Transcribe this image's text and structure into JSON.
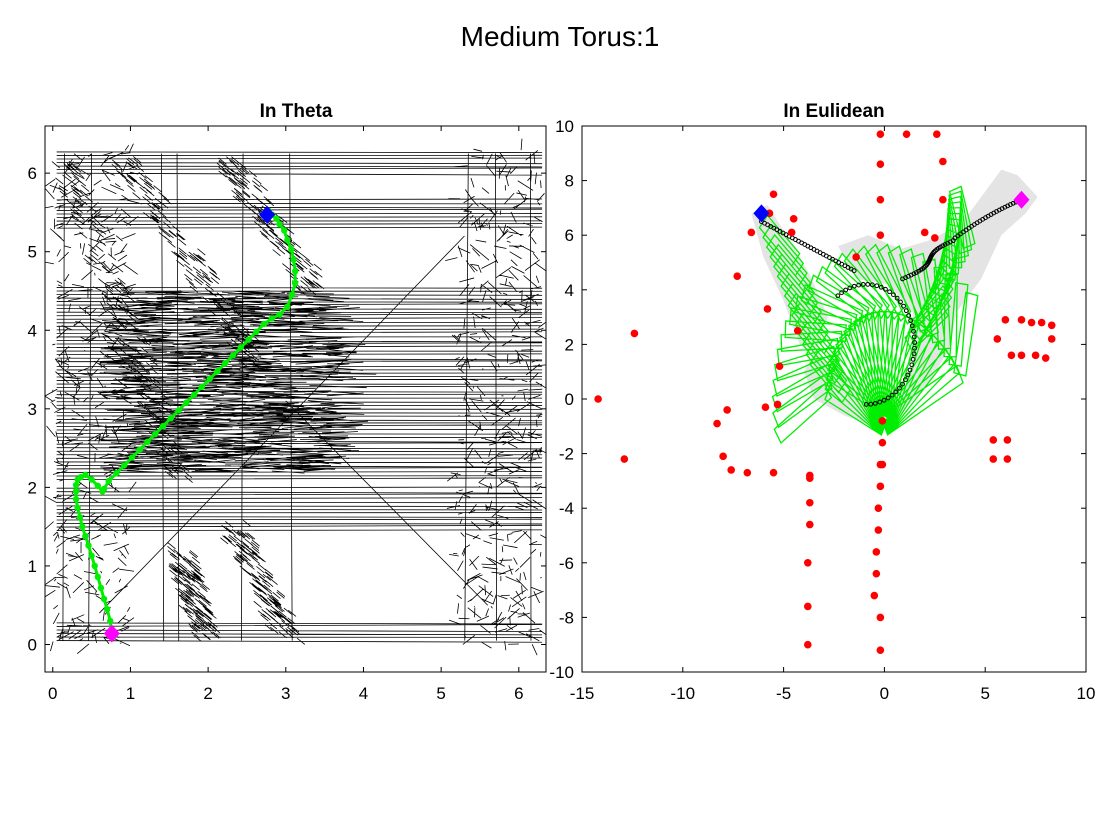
{
  "figure": {
    "title": "Medium Torus:1"
  },
  "chart_data": [
    {
      "type": "scatter",
      "title": "In Theta",
      "xlabel": "",
      "ylabel": "",
      "xlim": [
        -0.1,
        6.35
      ],
      "ylim": [
        -0.35,
        6.6
      ],
      "xticks": [
        0,
        1,
        2,
        3,
        4,
        5,
        6
      ],
      "yticks": [
        0,
        1,
        2,
        3,
        4,
        5,
        6
      ],
      "grid": false,
      "colors": {
        "path": "#00ee00",
        "start": "#ff00ff",
        "goal": "#0000ff",
        "tree": "#000000"
      },
      "path": {
        "x": [
          0.76,
          0.74,
          0.7,
          0.66,
          0.62,
          0.58,
          0.54,
          0.5,
          0.46,
          0.42,
          0.38,
          0.35,
          0.32,
          0.3,
          0.3,
          0.3,
          0.32,
          0.36,
          0.42,
          0.5,
          0.58,
          0.64,
          0.66,
          0.72,
          0.82,
          0.92,
          1.02,
          1.12,
          1.22,
          1.32,
          1.42,
          1.52,
          1.62,
          1.72,
          1.82,
          1.92,
          2.02,
          2.12,
          2.22,
          2.32,
          2.42,
          2.52,
          2.62,
          2.72,
          2.82,
          2.92,
          3.02,
          3.08,
          3.12,
          3.12,
          3.1,
          3.07,
          3.02,
          2.98,
          2.92,
          2.88,
          2.82,
          2.78,
          2.76
        ],
        "y": [
          0.14,
          0.3,
          0.45,
          0.58,
          0.72,
          0.86,
          1.0,
          1.13,
          1.26,
          1.38,
          1.5,
          1.62,
          1.74,
          1.85,
          1.95,
          2.03,
          2.1,
          2.13,
          2.16,
          2.1,
          2.02,
          1.95,
          1.98,
          2.08,
          2.18,
          2.28,
          2.38,
          2.48,
          2.58,
          2.68,
          2.78,
          2.88,
          2.98,
          3.08,
          3.18,
          3.28,
          3.38,
          3.48,
          3.58,
          3.68,
          3.78,
          3.88,
          3.98,
          4.08,
          4.15,
          4.2,
          4.3,
          4.45,
          4.6,
          4.75,
          4.9,
          5.03,
          5.15,
          5.27,
          5.35,
          5.42,
          5.47,
          5.52,
          5.47
        ]
      },
      "start": {
        "x": 0.76,
        "y": 0.14
      },
      "goal": {
        "x": 2.76,
        "y": 5.47
      }
    },
    {
      "type": "scatter",
      "title": "In Eulidean",
      "xlabel": "",
      "ylabel": "",
      "xlim": [
        -15,
        10
      ],
      "ylim": [
        -10,
        10
      ],
      "xticks": [
        -15,
        -10,
        -5,
        0,
        5,
        10
      ],
      "yticks": [
        -10,
        -8,
        -6,
        -4,
        -2,
        0,
        2,
        4,
        6,
        8,
        10
      ],
      "grid": false,
      "colors": {
        "obstacles": "#ff0000",
        "arm": "#00ee00",
        "arm_fill": "#e4e4e4",
        "trace": "#000000",
        "start": "#ff00ff",
        "goal": "#0000ff"
      },
      "obstacles": {
        "x": [
          -14.2,
          -12.4,
          -12.9,
          -8.0,
          -8.3,
          -7.8,
          -7.6,
          -7.3,
          -6.8,
          -6.6,
          -5.9,
          -5.7,
          -5.5,
          -5.5,
          -5.2,
          -4.5,
          -5.3,
          -5.8,
          -4.6,
          -4.3,
          -3.7,
          -3.7,
          -3.7,
          -3.8,
          -3.8,
          -3.8,
          -3.7,
          -0.2,
          -0.2,
          -0.2,
          -0.2,
          -0.2,
          -0.2,
          -0.3,
          -0.3,
          -0.4,
          -0.4,
          -0.5,
          -0.2,
          -0.2,
          -0.1,
          -0.1,
          -0.1,
          1.1,
          2.6,
          2.9,
          2.9,
          2.5,
          2.0,
          -1.4,
          6.0,
          6.8,
          7.3,
          7.8,
          8.3,
          8.3,
          8.0,
          7.5,
          6.8,
          6.3,
          5.6,
          5.4,
          6.1,
          5.4,
          6.1
        ],
        "y": [
          0.0,
          2.4,
          -2.2,
          -2.1,
          -0.9,
          -0.4,
          -2.6,
          4.5,
          -2.7,
          6.1,
          -0.3,
          6.8,
          7.5,
          -2.7,
          1.2,
          6.6,
          -0.2,
          3.3,
          6.1,
          2.5,
          -2.8,
          -3.8,
          -4.6,
          -6.0,
          -7.6,
          -9.0,
          -2.9,
          9.7,
          8.6,
          7.3,
          6.0,
          -2.4,
          -3.2,
          -4.0,
          -4.8,
          -5.6,
          -6.4,
          -7.2,
          -8.0,
          -9.2,
          -2.4,
          -1.6,
          -0.8,
          9.7,
          9.7,
          8.7,
          7.3,
          5.9,
          6.1,
          5.2,
          2.9,
          2.9,
          2.8,
          2.8,
          2.7,
          2.2,
          1.5,
          1.6,
          1.6,
          1.6,
          2.2,
          -1.5,
          -1.5,
          -2.2,
          -2.2
        ]
      },
      "start": {
        "x": 6.8,
        "y": 7.3
      },
      "goal": {
        "x": -6.1,
        "y": 6.8
      }
    }
  ]
}
